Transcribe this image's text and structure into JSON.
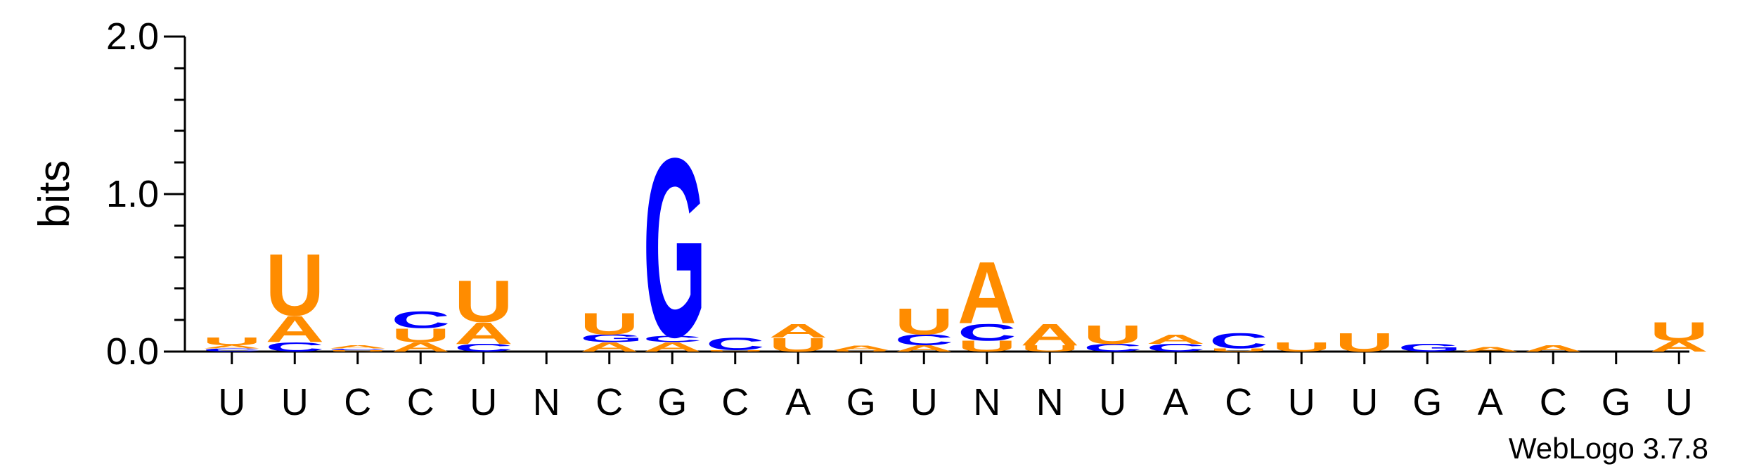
{
  "chart_data": {
    "type": "sequence-logo",
    "ylabel": "bits",
    "ylim": [
      0,
      2.0
    ],
    "yticks": [
      "0.0",
      "1.0",
      "2.0"
    ],
    "xticks": [
      "U",
      "U",
      "C",
      "C",
      "U",
      "N",
      "C",
      "G",
      "C",
      "A",
      "G",
      "U",
      "N",
      "N",
      "U",
      "A",
      "C",
      "U",
      "U",
      "G",
      "A",
      "C",
      "G",
      "U"
    ],
    "colors": {
      "A": "#ff8c00",
      "U": "#ff8c00",
      "C": "#0000ff",
      "G": "#0000ff"
    },
    "columns": [
      {
        "stack": [
          [
            "C",
            0.02
          ],
          [
            "A",
            0.02
          ],
          [
            "U",
            0.05
          ]
        ]
      },
      {
        "stack": [
          [
            "C",
            0.06
          ],
          [
            "A",
            0.17
          ],
          [
            "U",
            0.4
          ]
        ]
      },
      {
        "stack": [
          [
            "U",
            0.01
          ],
          [
            "C",
            0.01
          ],
          [
            "A",
            0.02
          ]
        ]
      },
      {
        "stack": [
          [
            "A",
            0.06
          ],
          [
            "U",
            0.09
          ],
          [
            "C",
            0.11
          ]
        ]
      },
      {
        "stack": [
          [
            "C",
            0.05
          ],
          [
            "A",
            0.14
          ],
          [
            "U",
            0.27
          ]
        ]
      },
      {
        "stack": []
      },
      {
        "stack": [
          [
            "A",
            0.06
          ],
          [
            "G",
            0.05
          ],
          [
            "U",
            0.14
          ]
        ]
      },
      {
        "stack": [
          [
            "A",
            0.06
          ],
          [
            "C",
            0.04
          ],
          [
            "G",
            1.16
          ]
        ]
      },
      {
        "stack": [
          [
            "U",
            0.01
          ],
          [
            "C",
            0.08
          ]
        ]
      },
      {
        "stack": [
          [
            "U",
            0.09
          ],
          [
            "A",
            0.09
          ]
        ]
      },
      {
        "stack": [
          [
            "U",
            0.01
          ],
          [
            "A",
            0.03
          ]
        ]
      },
      {
        "stack": [
          [
            "A",
            0.04
          ],
          [
            "C",
            0.07
          ],
          [
            "U",
            0.17
          ]
        ]
      },
      {
        "stack": [
          [
            "U",
            0.07
          ],
          [
            "C",
            0.11
          ],
          [
            "A",
            0.4
          ]
        ]
      },
      {
        "stack": [
          [
            "U",
            0.04
          ],
          [
            "A",
            0.14
          ]
        ]
      },
      {
        "stack": [
          [
            "C",
            0.05
          ],
          [
            "U",
            0.12
          ]
        ]
      },
      {
        "stack": [
          [
            "C",
            0.05
          ],
          [
            "A",
            0.06
          ]
        ]
      },
      {
        "stack": [
          [
            "U",
            0.02
          ],
          [
            "C",
            0.1
          ]
        ]
      },
      {
        "stack": [
          [
            "U",
            0.06
          ]
        ]
      },
      {
        "stack": [
          [
            "U",
            0.12
          ]
        ]
      },
      {
        "stack": [
          [
            "G",
            0.05
          ]
        ]
      },
      {
        "stack": [
          [
            "A",
            0.03
          ]
        ]
      },
      {
        "stack": [
          [
            "A",
            0.04
          ]
        ]
      },
      {
        "stack": []
      },
      {
        "stack": [
          [
            "A",
            0.07
          ],
          [
            "U",
            0.12
          ]
        ]
      }
    ]
  },
  "footer": {
    "credit": "WebLogo 3.7.8"
  }
}
